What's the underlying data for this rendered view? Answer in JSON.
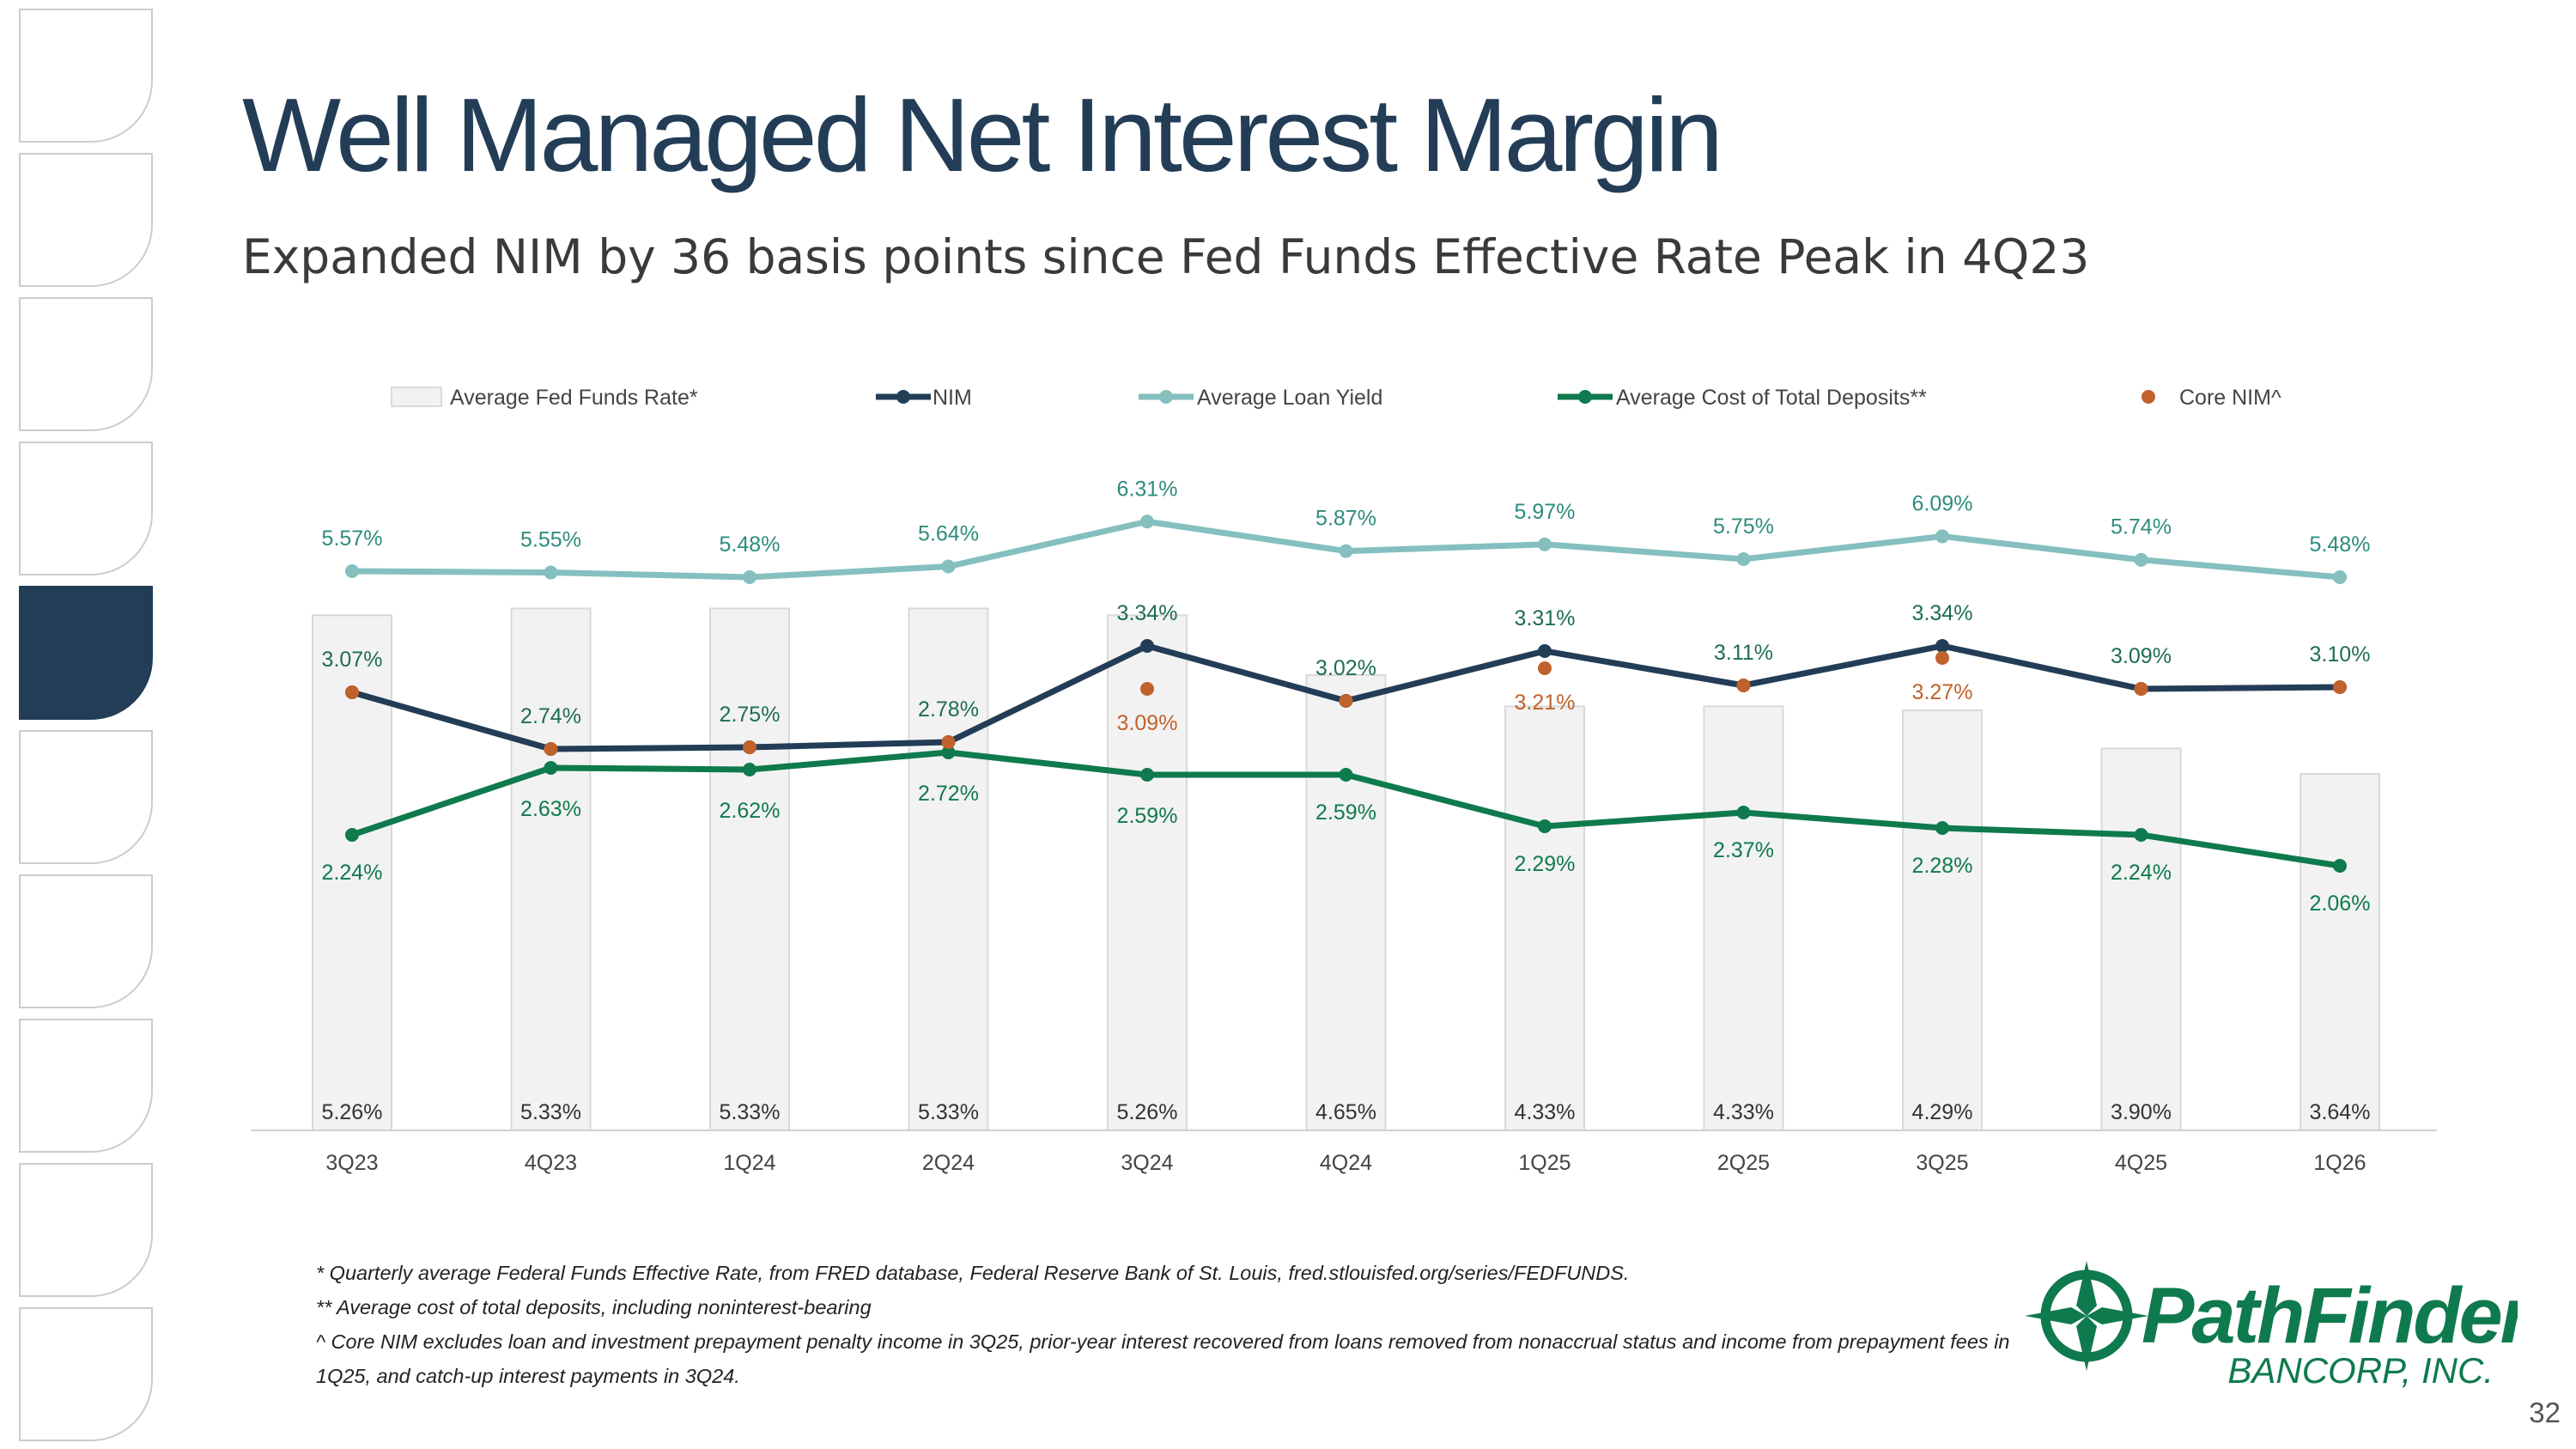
{
  "title": "Well Managed Net Interest Margin",
  "subtitle": "Expanded NIM by 36 basis points since Fed Funds Effective Rate Peak in 4Q23",
  "side_nav": {
    "tab_count": 10,
    "active_index": 4
  },
  "colors": {
    "title": "#233d57",
    "fed_bar_fill": "#f2f2f2",
    "fed_bar_stroke": "#d9d9d9",
    "nim": "#233d57",
    "loan_yield": "#85bfbf",
    "deposits": "#0f7a4d",
    "core_nim": "#c0622b",
    "label_nim": "#1e6e4f",
    "label_loan": "#2d8c7c"
  },
  "chart_data": {
    "type": "bar",
    "categories": [
      "3Q23",
      "4Q23",
      "1Q24",
      "2Q24",
      "3Q24",
      "4Q24",
      "1Q25",
      "2Q25",
      "3Q25",
      "4Q25",
      "1Q26"
    ],
    "ylim": [
      0,
      7
    ],
    "grid": false,
    "legend_position": "top",
    "series": [
      {
        "name": "Average Fed Funds Rate*",
        "type": "bar",
        "values": [
          5.26,
          5.33,
          5.33,
          5.33,
          5.26,
          4.65,
          4.33,
          4.33,
          4.29,
          3.9,
          3.64
        ],
        "labels": [
          "5.26%",
          "5.33%",
          "5.33%",
          "5.33%",
          "5.26%",
          "4.65%",
          "4.33%",
          "4.33%",
          "4.29%",
          "3.90%",
          "3.64%"
        ]
      },
      {
        "name": "NIM",
        "type": "line",
        "values": [
          3.07,
          2.74,
          2.75,
          2.78,
          3.34,
          3.02,
          3.31,
          3.11,
          3.34,
          3.09,
          3.1
        ],
        "labels": [
          "3.07%",
          "2.74%",
          "2.75%",
          "2.78%",
          "3.34%",
          "3.02%",
          "3.31%",
          "3.11%",
          "3.34%",
          "3.09%",
          "3.10%"
        ]
      },
      {
        "name": "Average Loan Yield",
        "type": "line",
        "values": [
          5.57,
          5.55,
          5.48,
          5.64,
          6.31,
          5.87,
          5.97,
          5.75,
          6.09,
          5.74,
          5.48
        ],
        "labels": [
          "5.57%",
          "5.55%",
          "5.48%",
          "5.64%",
          "6.31%",
          "5.87%",
          "5.97%",
          "5.75%",
          "6.09%",
          "5.74%",
          "5.48%"
        ]
      },
      {
        "name": "Average Cost of Total Deposits**",
        "type": "line",
        "values": [
          2.24,
          2.63,
          2.62,
          2.72,
          2.59,
          2.59,
          2.29,
          2.37,
          2.28,
          2.24,
          2.06
        ],
        "labels": [
          "2.24%",
          "2.63%",
          "2.62%",
          "2.72%",
          "2.59%",
          "2.59%",
          "2.29%",
          "2.37%",
          "2.28%",
          "2.24%",
          "2.06%"
        ]
      },
      {
        "name": "Core NIM^",
        "type": "scatter",
        "values": [
          3.07,
          2.74,
          2.75,
          2.78,
          3.09,
          3.02,
          3.21,
          3.11,
          3.27,
          3.09,
          3.1
        ],
        "labels": [
          "",
          "",
          "",
          "",
          "3.09%",
          "",
          "3.21%",
          "",
          "3.27%",
          "",
          ""
        ]
      }
    ]
  },
  "footnotes": [
    "* Quarterly average Federal Funds Effective Rate, from FRED database, Federal Reserve Bank of St. Louis, fred.stlouisfed.org/series/FEDFUNDS.",
    "**  Average cost of total deposits, including noninterest-bearing",
    "^ Core NIM excludes loan and investment prepayment penalty income in 3Q25, prior-year interest recovered from loans removed from nonaccrual status and income from prepayment fees in 1Q25, and catch-up interest payments in 3Q24."
  ],
  "logo": {
    "name": "PathFinder",
    "sub": "BANCORP, INC.",
    "icon": "compass-star-icon"
  },
  "page_number": "32"
}
